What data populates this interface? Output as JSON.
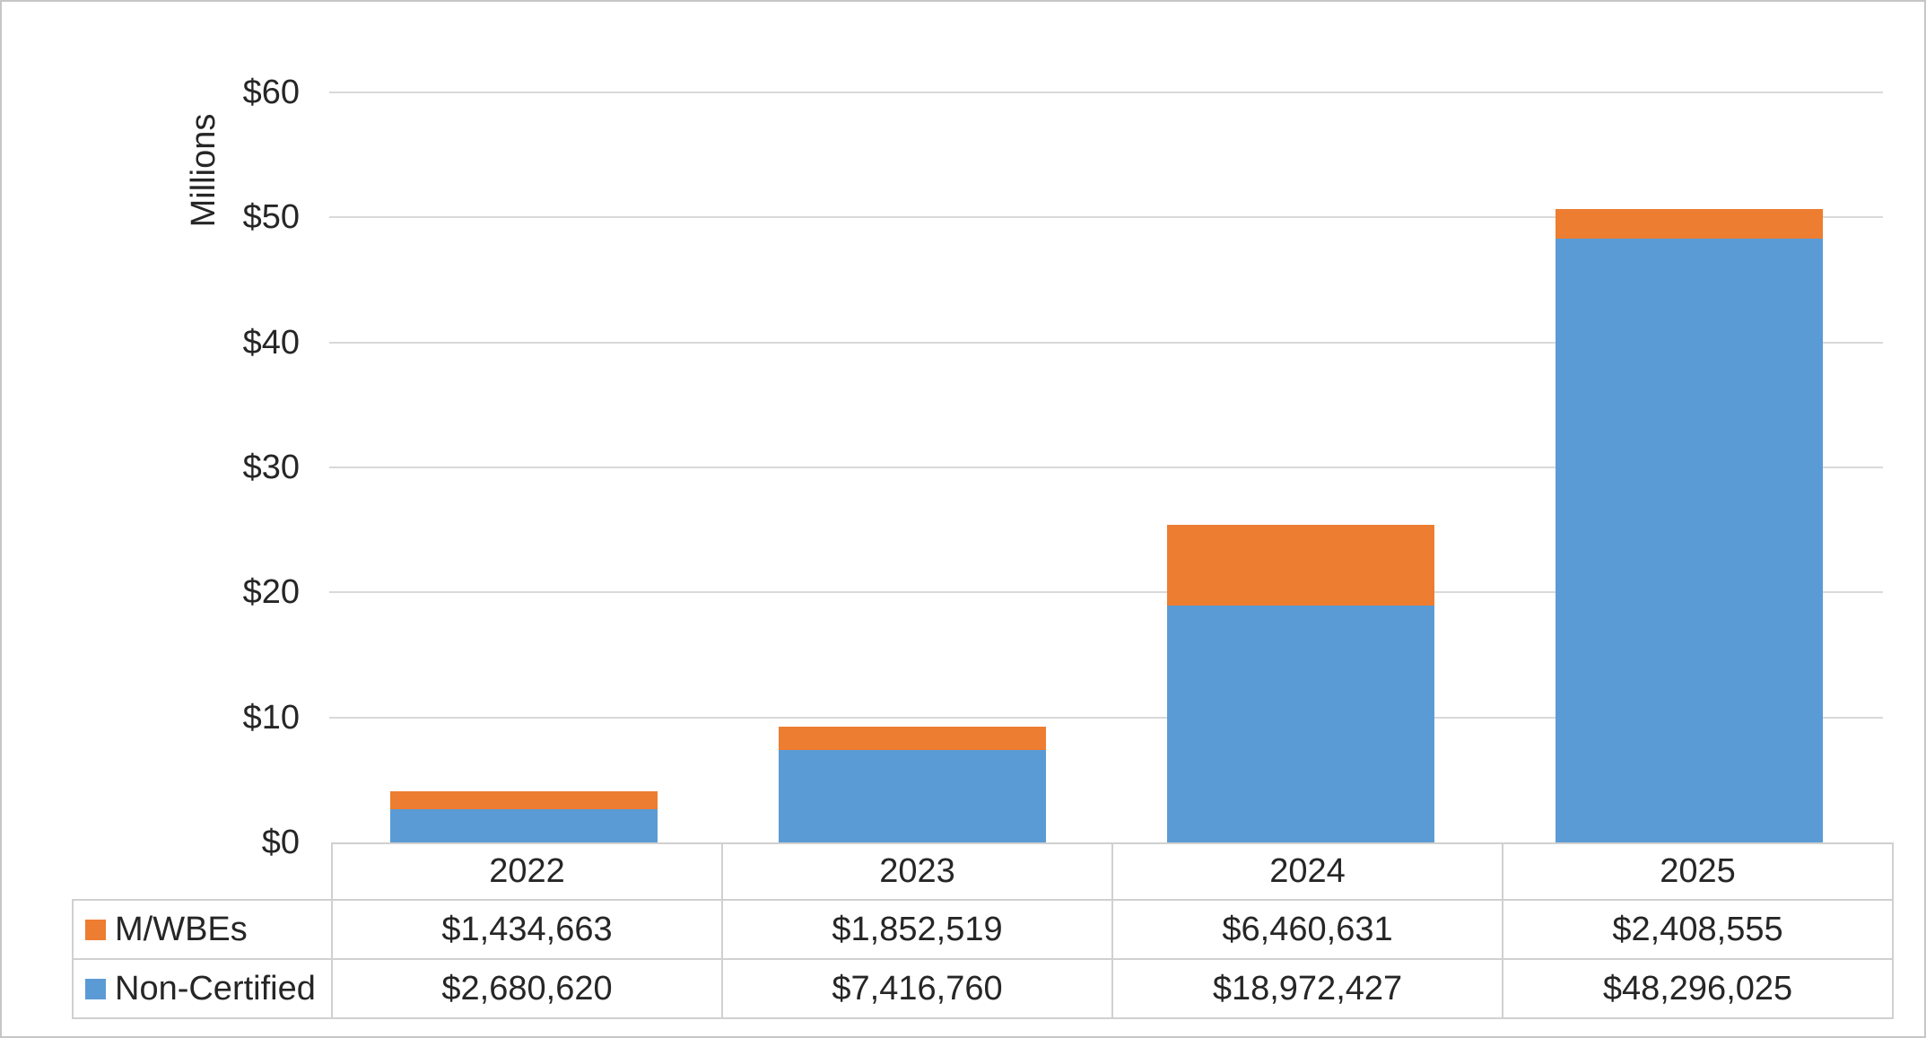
{
  "chart_data": {
    "type": "bar",
    "stacked": true,
    "title": "",
    "ylabel": "Millions",
    "xlabel": "",
    "categories": [
      "2022",
      "2023",
      "2024",
      "2025"
    ],
    "series": [
      {
        "name": "M/WBEs",
        "color": "#ED7D31",
        "values": [
          1434663,
          1852519,
          6460631,
          2408555
        ],
        "labels": [
          "$1,434,663",
          "$1,852,519",
          "$6,460,631",
          "$2,408,555"
        ]
      },
      {
        "name": "Non-Certified",
        "color": "#5B9BD5",
        "values": [
          2680620,
          7416760,
          18972427,
          48296025
        ],
        "labels": [
          "$2,680,620",
          "$7,416,760",
          "$18,972,427",
          "$48,296,025"
        ]
      }
    ],
    "y_axis": {
      "min": 0,
      "max": 60,
      "step": 10,
      "unit": "millions",
      "tick_labels": [
        "$0",
        "$10",
        "$20",
        "$30",
        "$40",
        "$50",
        "$60"
      ]
    },
    "grid": true,
    "legend_position": "left-of-data-table",
    "colors": {
      "gridline": "#d9d9d9",
      "table_border": "#d0d0d0",
      "text": "#262626"
    }
  }
}
